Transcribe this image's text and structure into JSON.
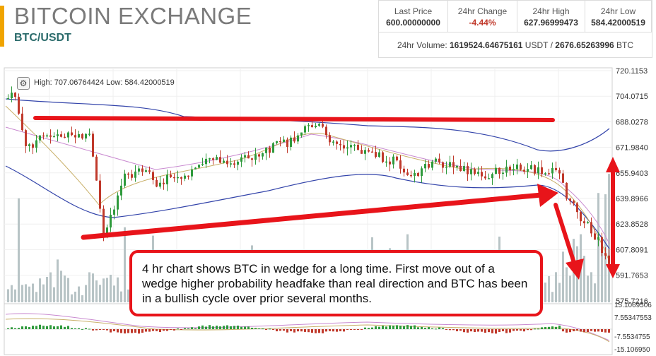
{
  "header": {
    "title": "BITCOIN EXCHANGE",
    "pair": "BTC/USDT"
  },
  "stats": {
    "last_price_label": "Last Price",
    "last_price": "600.00000000",
    "change_label": "24hr Change",
    "change": "-4.44%",
    "high_label": "24hr High",
    "high": "627.96999473",
    "low_label": "24hr Low",
    "low": "584.42000519",
    "volume_label": "24hr Volume:",
    "volume_usdt": "1619524.64675161",
    "volume_usdt_unit": "USDT",
    "volume_sep": "/",
    "volume_btc": "2676.65263996",
    "volume_btc_unit": "BTC"
  },
  "chart": {
    "hilo_text": "High: 707.06764424  Low: 584.42000519",
    "price_ticks": [
      "720.1153",
      "704.0715",
      "688.0278",
      "671.9840",
      "655.9403",
      "639.8966",
      "623.8528",
      "607.8091",
      "591.7653",
      "575.7216"
    ],
    "macd_ticks": [
      "15.1069506",
      "7.55347553",
      "-7.5534755",
      "-15.106950"
    ],
    "gear_glyph": "⚙",
    "colors": {
      "up": "#2e9a3c",
      "down": "#c0392b",
      "arrow": "#e8141a",
      "volume": "#b8c4c6"
    }
  },
  "annotation": {
    "text": "4 hr chart shows BTC in wedge for a long time. First move out of a wedge higher probability headfake than real direction and BTC has been in a bullish cycle over prior several months."
  }
}
